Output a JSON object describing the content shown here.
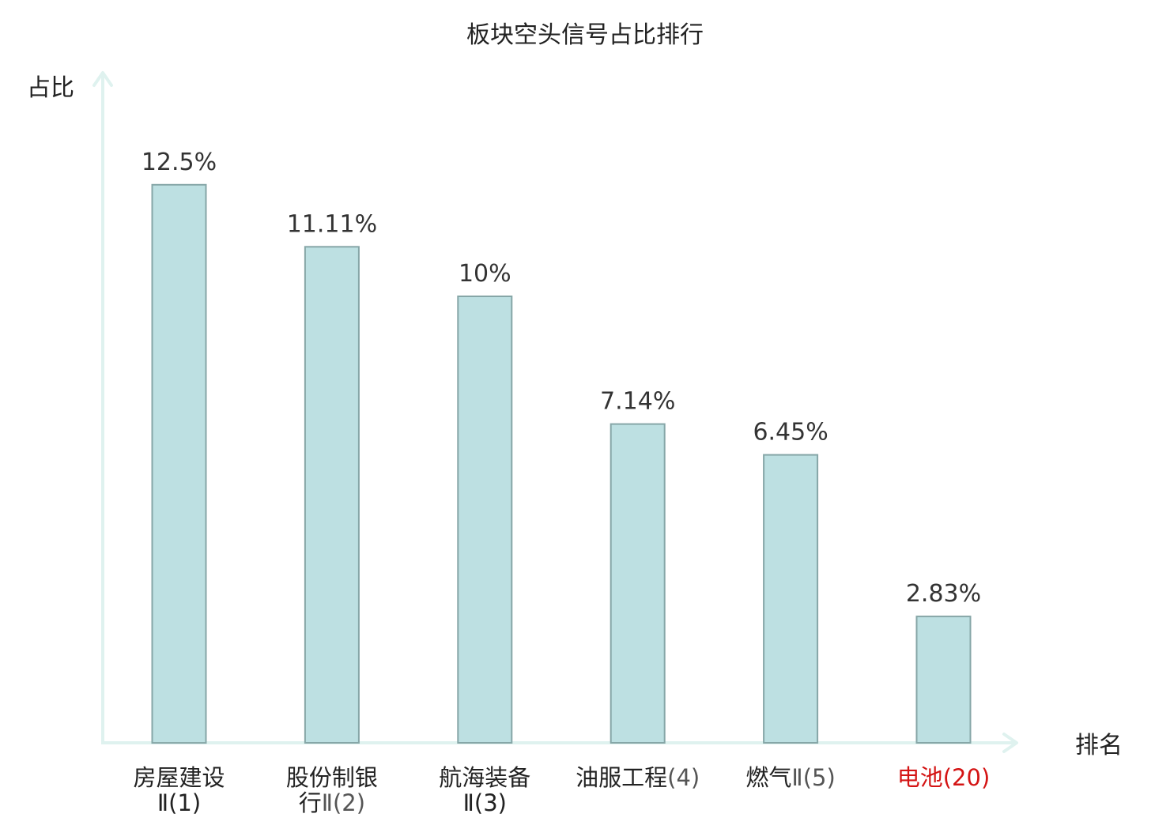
{
  "chart_data": {
    "type": "bar",
    "title": "板块空头信号占比排行",
    "ylabel": "占比",
    "xlabel": "排名",
    "ylim": [
      0,
      15
    ],
    "grid": false,
    "categories": [
      {
        "lines": [
          [
            "房屋建设",
            ""
          ],
          [
            "Ⅱ(1)",
            ""
          ]
        ],
        "label": "房屋建设Ⅱ(1)",
        "highlight": false
      },
      {
        "lines": [
          [
            "股份制银",
            ""
          ],
          [
            "行",
            "Ⅱ(2)"
          ]
        ],
        "label": "股份制银行Ⅱ(2)",
        "highlight": false
      },
      {
        "lines": [
          [
            "航海装备",
            ""
          ],
          [
            "Ⅱ(3)",
            ""
          ]
        ],
        "label": "航海装备Ⅱ(3)",
        "highlight": false
      },
      {
        "lines": [
          [
            "油服工程",
            "(4)"
          ]
        ],
        "label": "油服工程(4)",
        "highlight": false
      },
      {
        "lines": [
          [
            "燃气",
            "Ⅱ(5)"
          ]
        ],
        "label": "燃气Ⅱ(5)",
        "highlight": false
      },
      {
        "lines": [
          [
            "电池",
            "(20)"
          ]
        ],
        "label": "电池(20)",
        "highlight": true
      }
    ],
    "values": [
      12.5,
      11.11,
      10,
      7.14,
      6.45,
      2.83
    ],
    "value_labels": [
      "12.5%",
      "11.11%",
      "10%",
      "7.14%",
      "6.45%",
      "2.83%"
    ],
    "colors": {
      "bar_fill": "#bde0e2",
      "bar_stroke": "#86a6a7",
      "axis": "#dff2ef",
      "highlight_text": "#d41414"
    }
  }
}
